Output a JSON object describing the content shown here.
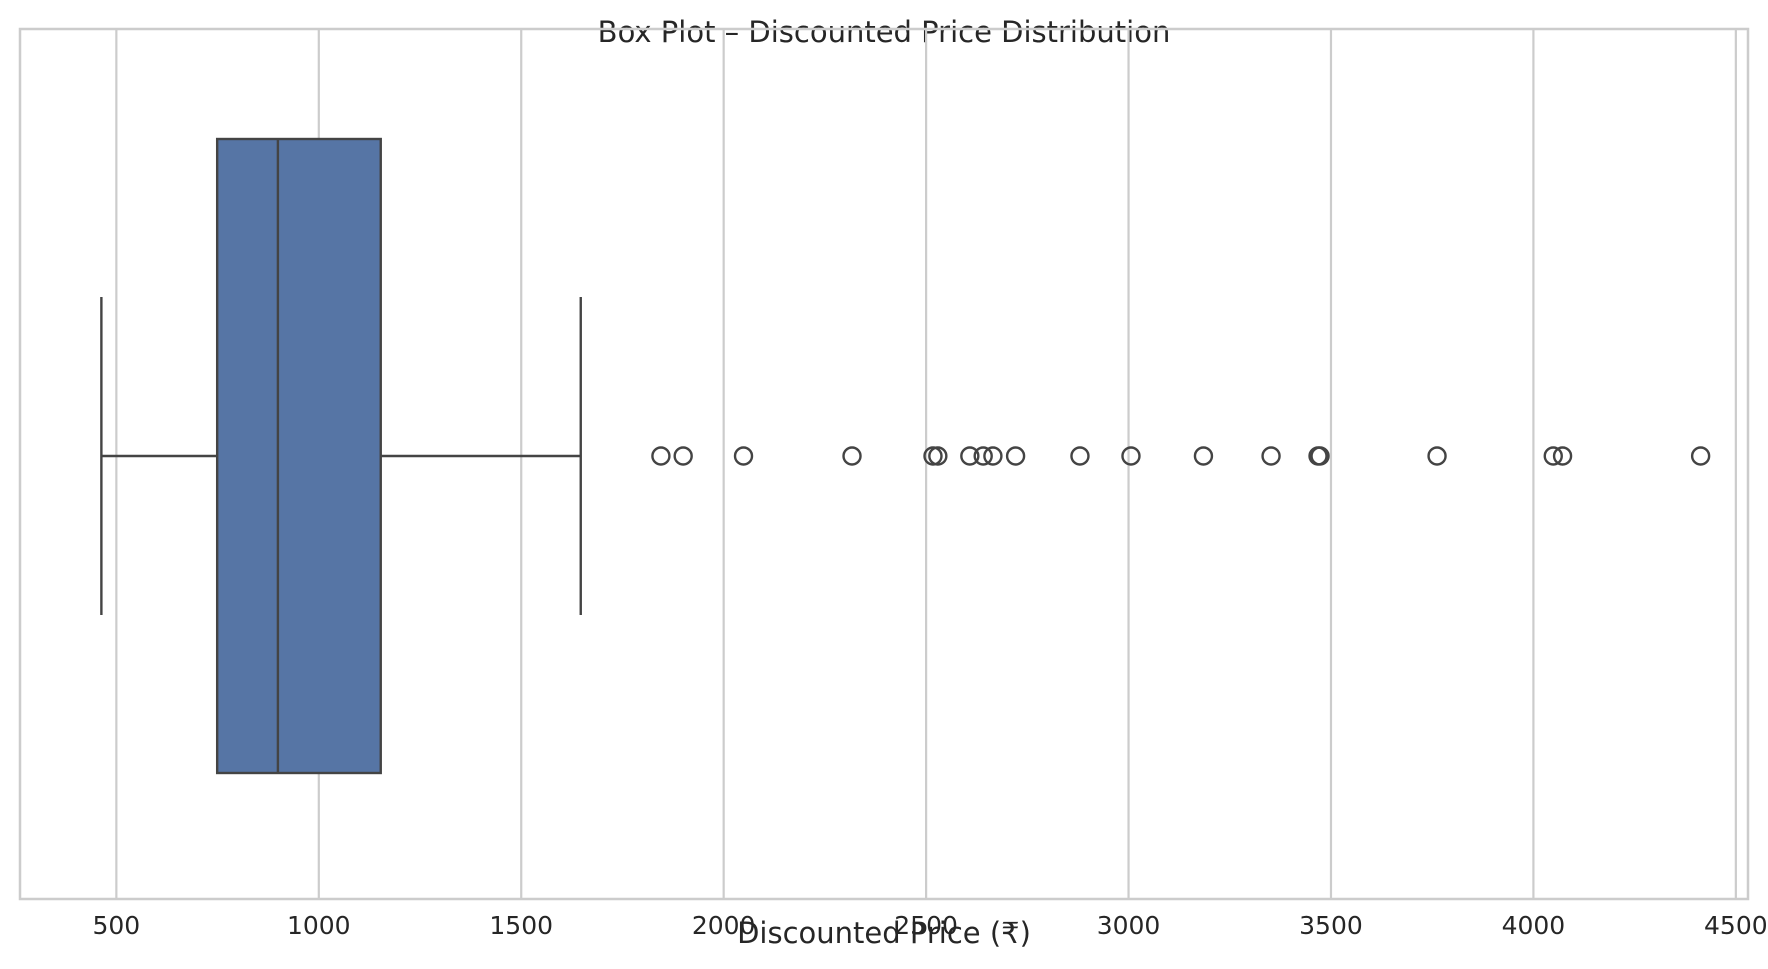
{
  "chart_data": {
    "type": "box",
    "orientation": "horizontal",
    "title": "Box Plot – Discounted Price Distribution",
    "xlabel": "Discounted Price (₹)",
    "ylabel": "",
    "xlim": [
      262,
      4530
    ],
    "xticks": [
      500,
      1000,
      1500,
      2000,
      2500,
      3000,
      3500,
      4000,
      4500
    ],
    "xtick_labels": [
      "500",
      "1000",
      "1500",
      "2000",
      "2500",
      "3000",
      "3500",
      "4000",
      "4500"
    ],
    "grid": "vertical",
    "box": {
      "whisker_low": 463,
      "q1": 749,
      "median": 899,
      "q3": 1153,
      "whisker_high": 1647
    },
    "outliers": [
      1845,
      1900,
      2049,
      2317,
      2517,
      2529,
      2608,
      2641,
      2665,
      2721,
      2880,
      3006,
      3185,
      3352,
      3468,
      3473,
      3762,
      4049,
      4072,
      4413
    ],
    "colors": {
      "box_fill": "#5675A5",
      "lines": "#444444",
      "grid": "#CCCCCC",
      "frame": "#CCCCCC",
      "text": "#262626"
    }
  }
}
